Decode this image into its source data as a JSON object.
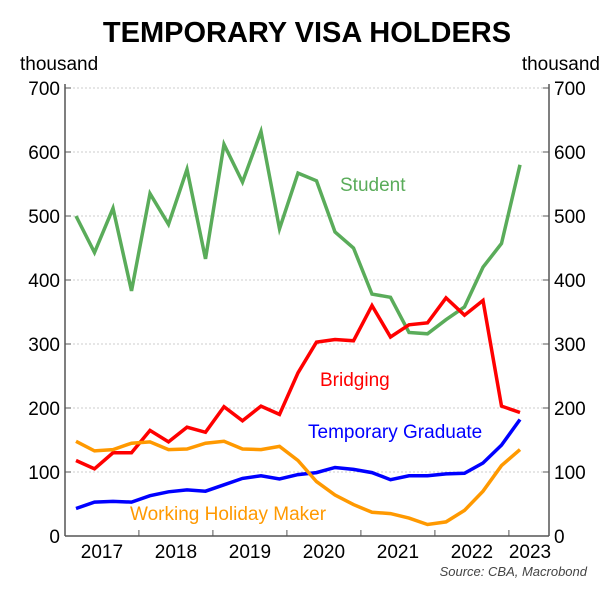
{
  "chart_data": {
    "type": "line",
    "title": "TEMPORARY VISA HOLDERS",
    "ylabel_left": "thousand",
    "ylabel_right": "thousand",
    "source": "Source: CBA, Macrobond",
    "ylim": [
      0,
      700
    ],
    "yticks": [
      0,
      100,
      200,
      300,
      400,
      500,
      600,
      700
    ],
    "year_labels": [
      "2017",
      "2018",
      "2019",
      "2020",
      "2021",
      "2022",
      "2023"
    ],
    "x": [
      "2017Q1",
      "2017Q2",
      "2017Q3",
      "2017Q4",
      "2018Q1",
      "2018Q2",
      "2018Q3",
      "2018Q4",
      "2019Q1",
      "2019Q2",
      "2019Q3",
      "2019Q4",
      "2020Q1",
      "2020Q2",
      "2020Q3",
      "2020Q4",
      "2021Q1",
      "2021Q2",
      "2021Q3",
      "2021Q4",
      "2022Q1",
      "2022Q2",
      "2022Q3",
      "2022Q4",
      "2023Q1"
    ],
    "grid": true,
    "series": [
      {
        "name": "Student",
        "color": "#5aac5a",
        "values": [
          500,
          443,
          512,
          383,
          535,
          487,
          573,
          433,
          612,
          553,
          632,
          480,
          567,
          555,
          475,
          450,
          378,
          373,
          318,
          316,
          338,
          358,
          420,
          457,
          580
        ]
      },
      {
        "name": "Bridging",
        "color": "#ff0000",
        "values": [
          118,
          105,
          130,
          130,
          165,
          147,
          170,
          162,
          202,
          180,
          203,
          190,
          255,
          303,
          307,
          305,
          360,
          311,
          330,
          333,
          372,
          345,
          368,
          203,
          193
        ]
      },
      {
        "name": "Temporary Graduate",
        "color": "#0000ff",
        "values": [
          43,
          53,
          54,
          53,
          63,
          69,
          72,
          70,
          80,
          90,
          94,
          89,
          96,
          99,
          107,
          104,
          99,
          88,
          94,
          94,
          97,
          98,
          114,
          142,
          182
        ]
      },
      {
        "name": "Working Holiday Maker",
        "color": "#ff9900",
        "values": [
          148,
          133,
          135,
          145,
          147,
          135,
          136,
          145,
          148,
          136,
          135,
          140,
          118,
          85,
          64,
          49,
          37,
          35,
          28,
          18,
          22,
          40,
          70,
          110,
          135
        ]
      }
    ]
  }
}
